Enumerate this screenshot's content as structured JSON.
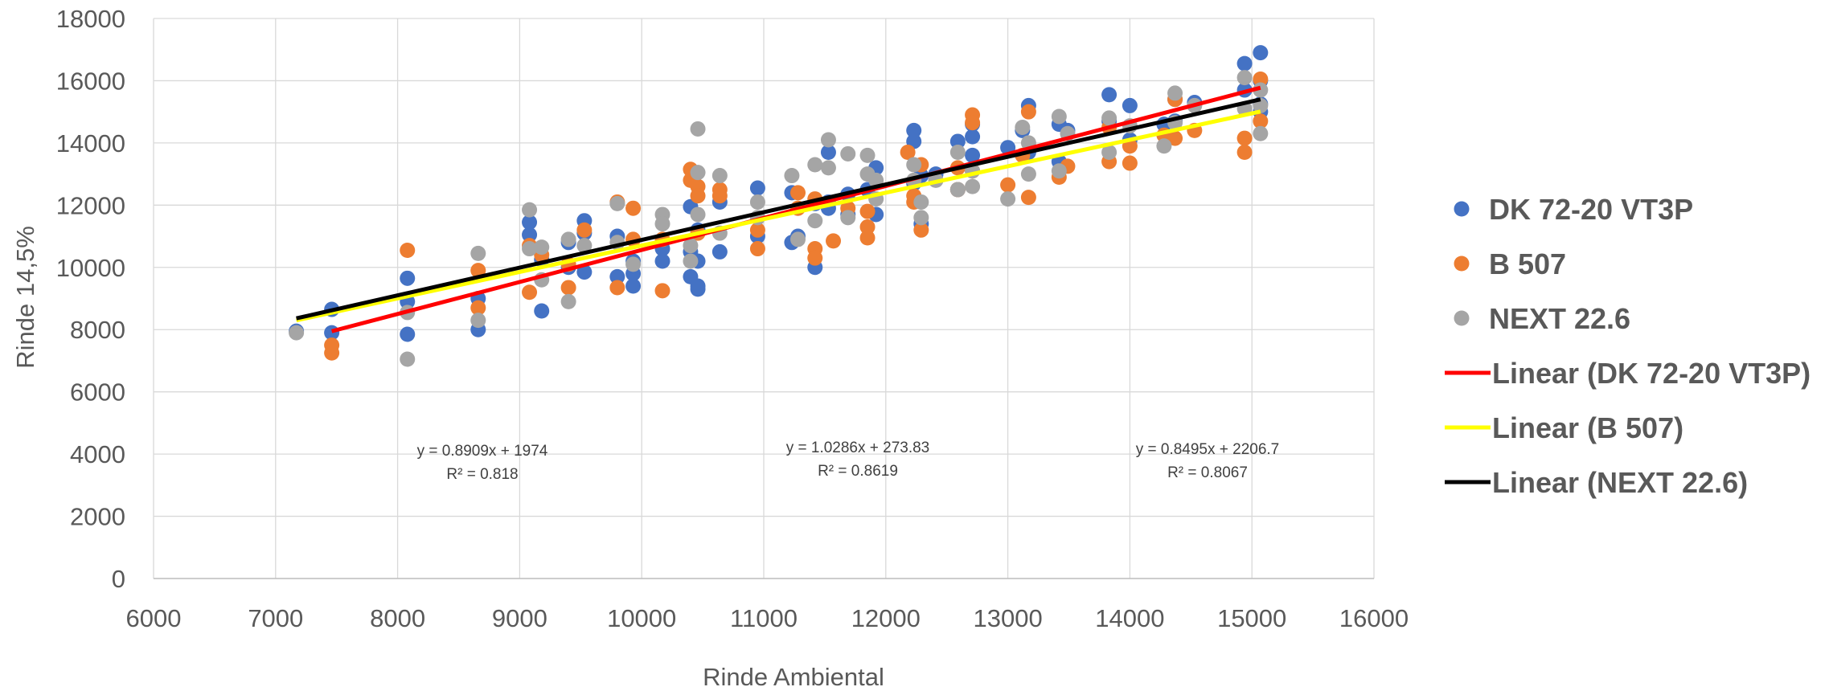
{
  "chart_data": {
    "type": "scatter",
    "xlabel": "Rinde Ambiental",
    "ylabel": "Rinde 14,5%",
    "xlim": [
      6000,
      16000
    ],
    "ylim": [
      0,
      18000
    ],
    "x_ticks": [
      "6000",
      "7000",
      "8000",
      "9000",
      "10000",
      "11000",
      "12000",
      "13000",
      "14000",
      "15000",
      "16000"
    ],
    "y_ticks": [
      "0",
      "2000",
      "4000",
      "6000",
      "8000",
      "10000",
      "12000",
      "14000",
      "16000",
      "18000"
    ],
    "grid": true,
    "legend_position": "right",
    "series": [
      {
        "name": "DK 72-20 VT3P",
        "color": "#4472c4",
        "points": [
          [
            7170,
            7950
          ],
          [
            7460,
            8650
          ],
          [
            7460,
            7900
          ],
          [
            8080,
            9650
          ],
          [
            8080,
            7850
          ],
          [
            8080,
            8900
          ],
          [
            8660,
            8000
          ],
          [
            8660,
            9000
          ],
          [
            9080,
            11450
          ],
          [
            9080,
            11050
          ],
          [
            9180,
            10250
          ],
          [
            9180,
            8600
          ],
          [
            9400,
            10000
          ],
          [
            9400,
            10800
          ],
          [
            9530,
            11500
          ],
          [
            9530,
            11100
          ],
          [
            9530,
            9850
          ],
          [
            9800,
            11000
          ],
          [
            9800,
            9700
          ],
          [
            9930,
            9400
          ],
          [
            9930,
            10200
          ],
          [
            9930,
            9800
          ],
          [
            10170,
            10600
          ],
          [
            10170,
            10200
          ],
          [
            10400,
            11950
          ],
          [
            10400,
            9700
          ],
          [
            10400,
            10500
          ],
          [
            10460,
            9300
          ],
          [
            10460,
            9400
          ],
          [
            10460,
            10200
          ],
          [
            10460,
            11200
          ],
          [
            10640,
            10500
          ],
          [
            10640,
            12100
          ],
          [
            10950,
            12550
          ],
          [
            10950,
            11000
          ],
          [
            11230,
            12400
          ],
          [
            11230,
            10800
          ],
          [
            11280,
            11000
          ],
          [
            11420,
            12050
          ],
          [
            11420,
            10000
          ],
          [
            11530,
            13700
          ],
          [
            11530,
            11900
          ],
          [
            11530,
            12100
          ],
          [
            11690,
            12350
          ],
          [
            11690,
            11700
          ],
          [
            11850,
            12500
          ],
          [
            11920,
            13200
          ],
          [
            11920,
            11700
          ],
          [
            12230,
            14400
          ],
          [
            12230,
            14050
          ],
          [
            12230,
            12700
          ],
          [
            12290,
            12950
          ],
          [
            12290,
            11400
          ],
          [
            12410,
            13000
          ],
          [
            12590,
            14050
          ],
          [
            12590,
            12500
          ],
          [
            12710,
            14600
          ],
          [
            12710,
            14200
          ],
          [
            12710,
            13600
          ],
          [
            13000,
            13850
          ],
          [
            13120,
            14400
          ],
          [
            13170,
            15200
          ],
          [
            13170,
            13700
          ],
          [
            13420,
            14600
          ],
          [
            13420,
            13400
          ],
          [
            13490,
            14400
          ],
          [
            13830,
            15550
          ],
          [
            13830,
            14700
          ],
          [
            14000,
            15200
          ],
          [
            14000,
            14100
          ],
          [
            14280,
            14600
          ],
          [
            14370,
            15400
          ],
          [
            14370,
            14700
          ],
          [
            14530,
            15300
          ],
          [
            14940,
            16550
          ],
          [
            14940,
            15700
          ],
          [
            15070,
            16900
          ],
          [
            15070,
            16000
          ],
          [
            15070,
            15250
          ],
          [
            15070,
            15000
          ]
        ]
      },
      {
        "name": "B 507",
        "color": "#ed7d31",
        "points": [
          [
            7460,
            7250
          ],
          [
            7460,
            7500
          ],
          [
            8080,
            10550
          ],
          [
            8660,
            9900
          ],
          [
            8660,
            8700
          ],
          [
            9080,
            9200
          ],
          [
            9080,
            10700
          ],
          [
            9180,
            10400
          ],
          [
            9400,
            9350
          ],
          [
            9400,
            10100
          ],
          [
            9530,
            11200
          ],
          [
            9800,
            12100
          ],
          [
            9800,
            9350
          ],
          [
            9930,
            11900
          ],
          [
            9930,
            10900
          ],
          [
            10170,
            9250
          ],
          [
            10170,
            10900
          ],
          [
            10400,
            13150
          ],
          [
            10400,
            12800
          ],
          [
            10460,
            12600
          ],
          [
            10460,
            12300
          ],
          [
            10460,
            11100
          ],
          [
            10640,
            12500
          ],
          [
            10640,
            12300
          ],
          [
            10950,
            10600
          ],
          [
            10950,
            11200
          ],
          [
            11280,
            12400
          ],
          [
            11280,
            11900
          ],
          [
            11420,
            10600
          ],
          [
            11420,
            10300
          ],
          [
            11420,
            12200
          ],
          [
            11570,
            10850
          ],
          [
            11690,
            11900
          ],
          [
            11850,
            11300
          ],
          [
            11850,
            10950
          ],
          [
            11850,
            11800
          ],
          [
            12180,
            13700
          ],
          [
            12230,
            12100
          ],
          [
            12230,
            12300
          ],
          [
            12290,
            13300
          ],
          [
            12290,
            11200
          ],
          [
            12590,
            13200
          ],
          [
            12590,
            12500
          ],
          [
            12710,
            14900
          ],
          [
            12710,
            14650
          ],
          [
            12710,
            13100
          ],
          [
            13000,
            12650
          ],
          [
            13120,
            13600
          ],
          [
            13170,
            15000
          ],
          [
            13170,
            12250
          ],
          [
            13420,
            12900
          ],
          [
            13490,
            13250
          ],
          [
            13830,
            13400
          ],
          [
            13830,
            14500
          ],
          [
            14000,
            13350
          ],
          [
            14000,
            13900
          ],
          [
            14280,
            14250
          ],
          [
            14370,
            14150
          ],
          [
            14370,
            15400
          ],
          [
            14530,
            14400
          ],
          [
            14940,
            14150
          ],
          [
            14940,
            13700
          ],
          [
            15070,
            16050
          ],
          [
            15070,
            14700
          ]
        ]
      },
      {
        "name": "NEXT 22.6",
        "color": "#a5a5a5",
        "points": [
          [
            7170,
            7900
          ],
          [
            8080,
            7050
          ],
          [
            8080,
            8550
          ],
          [
            8660,
            10450
          ],
          [
            8660,
            8300
          ],
          [
            9080,
            11850
          ],
          [
            9080,
            10600
          ],
          [
            9180,
            10650
          ],
          [
            9180,
            9600
          ],
          [
            9400,
            8900
          ],
          [
            9400,
            10900
          ],
          [
            9530,
            10700
          ],
          [
            9800,
            12050
          ],
          [
            9800,
            10800
          ],
          [
            9930,
            10100
          ],
          [
            10170,
            11700
          ],
          [
            10170,
            11400
          ],
          [
            10400,
            10700
          ],
          [
            10400,
            10200
          ],
          [
            10460,
            14450
          ],
          [
            10460,
            13050
          ],
          [
            10460,
            11700
          ],
          [
            10640,
            12950
          ],
          [
            10640,
            11100
          ],
          [
            10950,
            11600
          ],
          [
            10950,
            12100
          ],
          [
            11230,
            12950
          ],
          [
            11280,
            10900
          ],
          [
            11420,
            13300
          ],
          [
            11420,
            11500
          ],
          [
            11530,
            14100
          ],
          [
            11530,
            13200
          ],
          [
            11690,
            13650
          ],
          [
            11690,
            11600
          ],
          [
            11850,
            13600
          ],
          [
            11850,
            13000
          ],
          [
            11920,
            12800
          ],
          [
            11920,
            12200
          ],
          [
            12230,
            13300
          ],
          [
            12230,
            12800
          ],
          [
            12290,
            11600
          ],
          [
            12290,
            12100
          ],
          [
            12410,
            12800
          ],
          [
            12590,
            13700
          ],
          [
            12590,
            12500
          ],
          [
            12710,
            13100
          ],
          [
            12710,
            12600
          ],
          [
            13000,
            12200
          ],
          [
            13120,
            14500
          ],
          [
            13170,
            14000
          ],
          [
            13170,
            13000
          ],
          [
            13420,
            14850
          ],
          [
            13420,
            13100
          ],
          [
            13490,
            14300
          ],
          [
            13830,
            14800
          ],
          [
            13830,
            13700
          ],
          [
            14000,
            14550
          ],
          [
            14280,
            13900
          ],
          [
            14370,
            15600
          ],
          [
            14370,
            14650
          ],
          [
            14530,
            15200
          ],
          [
            14940,
            16100
          ],
          [
            14940,
            15100
          ],
          [
            15070,
            15700
          ],
          [
            15070,
            15200
          ],
          [
            15070,
            14300
          ]
        ]
      }
    ],
    "trendlines": [
      {
        "name": "Linear (DK 72-20 VT3P)",
        "color": "#ff0000",
        "x_range": [
          7460,
          15070
        ],
        "slope": 1.0286,
        "intercept": 273.83,
        "equation": "y = 1.0286x + 273.83",
        "r2": "R² = 0.8619"
      },
      {
        "name": "Linear (B 507)",
        "color": "#ffff00",
        "x_range": [
          7170,
          15070
        ],
        "slope": 0.8495,
        "intercept": 2206.7,
        "equation": "y = 0.8495x + 2206.7",
        "r2": "R² = 0.8067"
      },
      {
        "name": "Linear (NEXT 22.6)",
        "color": "#000000",
        "x_range": [
          7170,
          15070
        ],
        "slope": 0.8909,
        "intercept": 1974,
        "equation": "y = 0.8909x + 1974",
        "r2": "R² = 0.818"
      }
    ]
  }
}
